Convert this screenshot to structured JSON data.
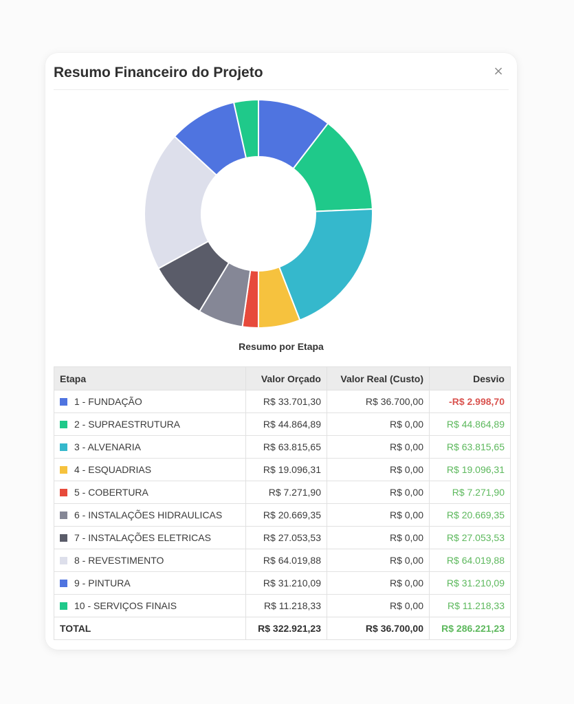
{
  "modal": {
    "title": "Resumo Financeiro do Projeto",
    "close_label": "×"
  },
  "chart_data": {
    "type": "pie",
    "title": "Resumo por Etapa",
    "categories": [
      "1 - FUNDAÇÃO",
      "2 - SUPRAESTRUTURA",
      "3 - ALVENARIA",
      "4 - ESQUADRIAS",
      "5 - COBERTURA",
      "6 - INSTALAÇÕES HIDRAULICAS",
      "7 - INSTALAÇÕES ELETRICAS",
      "8 - REVESTIMENTO",
      "9 - PINTURA",
      "10 - SERVIÇOS FINAIS"
    ],
    "values": [
      33701.3,
      44864.89,
      63815.65,
      19096.31,
      7271.9,
      20669.35,
      27053.53,
      64019.88,
      31210.09,
      11218.33
    ],
    "colors": [
      "#4f74e0",
      "#1fc98a",
      "#35b8cc",
      "#f6c23e",
      "#e74a3b",
      "#858796",
      "#5a5c69",
      "#dddfeb",
      "#4f74e0",
      "#1fc98a"
    ],
    "donut": true,
    "legend": "none"
  },
  "table": {
    "headers": {
      "etapa": "Etapa",
      "orcado": "Valor Orçado",
      "real": "Valor Real (Custo)",
      "desvio": "Desvio"
    },
    "rows": [
      {
        "etapa": "1 - FUNDAÇÃO",
        "orcado": "R$ 33.701,30",
        "real": "R$ 36.700,00",
        "desvio": "-R$ 2.998,70",
        "status": "neg",
        "color": "#4f74e0"
      },
      {
        "etapa": "2 - SUPRAESTRUTURA",
        "orcado": "R$ 44.864,89",
        "real": "R$ 0,00",
        "desvio": "R$ 44.864,89",
        "status": "pos",
        "color": "#1fc98a"
      },
      {
        "etapa": "3 - ALVENARIA",
        "orcado": "R$ 63.815,65",
        "real": "R$ 0,00",
        "desvio": "R$ 63.815,65",
        "status": "pos",
        "color": "#35b8cc"
      },
      {
        "etapa": "4 - ESQUADRIAS",
        "orcado": "R$ 19.096,31",
        "real": "R$ 0,00",
        "desvio": "R$ 19.096,31",
        "status": "pos",
        "color": "#f6c23e"
      },
      {
        "etapa": "5 - COBERTURA",
        "orcado": "R$ 7.271,90",
        "real": "R$ 0,00",
        "desvio": "R$ 7.271,90",
        "status": "pos",
        "color": "#e74a3b"
      },
      {
        "etapa": "6 - INSTALAÇÕES HIDRAULICAS",
        "orcado": "R$ 20.669,35",
        "real": "R$ 0,00",
        "desvio": "R$ 20.669,35",
        "status": "pos",
        "color": "#858796"
      },
      {
        "etapa": "7 - INSTALAÇÕES ELETRICAS",
        "orcado": "R$ 27.053,53",
        "real": "R$ 0,00",
        "desvio": "R$ 27.053,53",
        "status": "pos",
        "color": "#5a5c69"
      },
      {
        "etapa": "8 - REVESTIMENTO",
        "orcado": "R$ 64.019,88",
        "real": "R$ 0,00",
        "desvio": "R$ 64.019,88",
        "status": "pos",
        "color": "#dddfeb"
      },
      {
        "etapa": "9 - PINTURA",
        "orcado": "R$ 31.210,09",
        "real": "R$ 0,00",
        "desvio": "R$ 31.210,09",
        "status": "pos",
        "color": "#4f74e0"
      },
      {
        "etapa": "10 - SERVIÇOS FINAIS",
        "orcado": "R$ 11.218,33",
        "real": "R$ 0,00",
        "desvio": "R$ 11.218,33",
        "status": "pos",
        "color": "#1fc98a"
      }
    ],
    "total": {
      "label": "TOTAL",
      "orcado": "R$ 322.921,23",
      "real": "R$ 36.700,00",
      "desvio": "R$ 286.221,23"
    }
  }
}
